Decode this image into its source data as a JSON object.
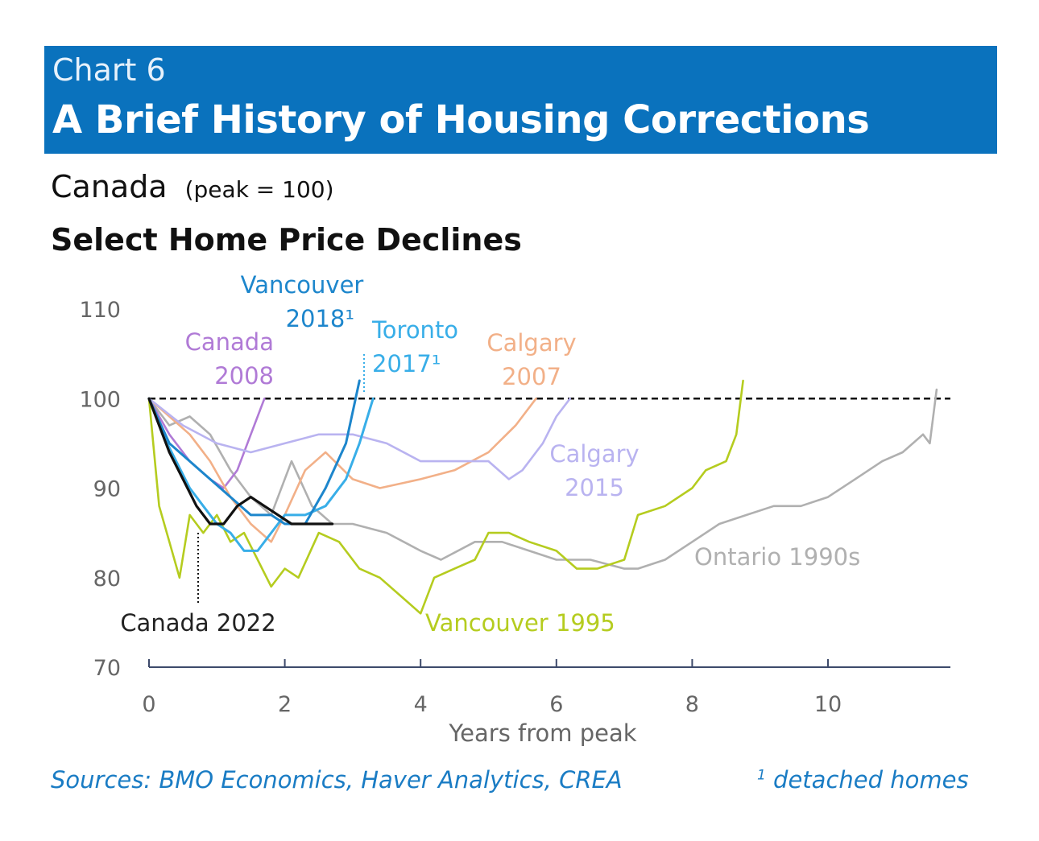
{
  "header": {
    "chart_number": "Chart 6",
    "title": "A Brief History of Housing Corrections"
  },
  "subtitle": {
    "region": "Canada",
    "note": "(peak = 100)",
    "heading": "Select Home Price Declines"
  },
  "footer": {
    "sources": "Sources: BMO Economics, Haver Analytics, CREA",
    "footnote_mark": "1",
    "footnote": "detached homes"
  },
  "chart_data": {
    "type": "line",
    "xlabel": "Years from peak",
    "ylabel": "",
    "xlim": [
      0,
      11.8
    ],
    "ylim": [
      70,
      110
    ],
    "xticks": [
      0,
      2,
      4,
      6,
      8,
      10
    ],
    "yticks": [
      70,
      80,
      90,
      100,
      110
    ],
    "reference_line": {
      "y": 100,
      "style": "dashed",
      "color": "#111111"
    },
    "series": [
      {
        "name": "Ontario 1990s",
        "color": "#b0b0b0",
        "label_lines": [
          "Ontario 1990s"
        ],
        "x": [
          0,
          0.3,
          0.6,
          0.9,
          1.2,
          1.5,
          1.8,
          2.1,
          2.4,
          2.7,
          3.0,
          3.5,
          4.0,
          4.3,
          4.8,
          5.2,
          5.6,
          6.0,
          6.5,
          7.0,
          7.2,
          7.6,
          8.0,
          8.4,
          8.8,
          9.2,
          9.6,
          10.0,
          10.4,
          10.8,
          11.1,
          11.4,
          11.5,
          11.6
        ],
        "y": [
          100,
          97,
          98,
          96,
          92,
          89,
          87,
          93,
          88,
          86,
          86,
          85,
          83,
          82,
          84,
          84,
          83,
          82,
          82,
          81,
          81,
          82,
          84,
          86,
          87,
          88,
          88,
          89,
          91,
          93,
          94,
          96,
          95,
          101
        ]
      },
      {
        "name": "Vancouver 1995",
        "color": "#b5cc1f",
        "label_lines": [
          "Vancouver 1995"
        ],
        "x": [
          0,
          0.15,
          0.3,
          0.45,
          0.6,
          0.8,
          1.0,
          1.2,
          1.4,
          1.6,
          1.8,
          2.0,
          2.2,
          2.5,
          2.8,
          3.1,
          3.4,
          3.7,
          4.0,
          4.2,
          4.5,
          4.8,
          5.0,
          5.3,
          5.6,
          6.0,
          6.3,
          6.6,
          7.0,
          7.2,
          7.6,
          8.0,
          8.2,
          8.5,
          8.65,
          8.75
        ],
        "y": [
          100,
          88,
          84,
          80,
          87,
          85,
          87,
          84,
          85,
          82,
          79,
          81,
          80,
          85,
          84,
          81,
          80,
          78,
          76,
          80,
          81,
          82,
          85,
          85,
          84,
          83,
          81,
          81,
          82,
          87,
          88,
          90,
          92,
          93,
          96,
          102
        ]
      },
      {
        "name": "Canada 2008",
        "color": "#b07ad6",
        "label_lines": [
          "Canada",
          "2008"
        ],
        "x": [
          0,
          0.3,
          0.6,
          0.9,
          1.1,
          1.3,
          1.5,
          1.7
        ],
        "y": [
          100,
          96,
          93,
          91,
          90,
          92,
          96,
          100
        ]
      },
      {
        "name": "Calgary 2007",
        "color": "#f2b088",
        "label_lines": [
          "Calgary",
          "2007"
        ],
        "x": [
          0,
          0.3,
          0.6,
          0.9,
          1.2,
          1.5,
          1.8,
          2.0,
          2.3,
          2.6,
          3.0,
          3.4,
          4.0,
          4.5,
          5.0,
          5.4,
          5.7
        ],
        "y": [
          100,
          98,
          96,
          93,
          89,
          86,
          84,
          87,
          92,
          94,
          91,
          90,
          91,
          92,
          94,
          97,
          100
        ]
      },
      {
        "name": "Calgary 2015",
        "color": "#b9b3f0",
        "label_lines": [
          "Calgary",
          "2015"
        ],
        "x": [
          0,
          0.5,
          1.0,
          1.5,
          2.0,
          2.5,
          3.0,
          3.5,
          4.0,
          4.5,
          5.0,
          5.3,
          5.5,
          5.8,
          6.0,
          6.2
        ],
        "y": [
          100,
          97,
          95,
          94,
          95,
          96,
          96,
          95,
          93,
          93,
          93,
          91,
          92,
          95,
          98,
          100
        ]
      },
      {
        "name": "Toronto 2017",
        "color": "#38aee8",
        "label_lines": [
          "Toronto",
          "2017¹"
        ],
        "x": [
          0,
          0.2,
          0.4,
          0.6,
          0.8,
          1.0,
          1.2,
          1.4,
          1.6,
          1.8,
          2.0,
          2.3,
          2.6,
          2.9,
          3.1,
          3.3
        ],
        "y": [
          100,
          96,
          93,
          90,
          88,
          86,
          85,
          83,
          83,
          85,
          87,
          87,
          88,
          91,
          95,
          100
        ]
      },
      {
        "name": "Vancouver 2018",
        "color": "#1d86cc",
        "label_lines": [
          "Vancouver",
          "2018¹"
        ],
        "x": [
          0,
          0.3,
          0.6,
          0.9,
          1.2,
          1.5,
          1.8,
          2.0,
          2.3,
          2.6,
          2.9,
          3.1
        ],
        "y": [
          100,
          95,
          93,
          91,
          89,
          87,
          87,
          86,
          86,
          90,
          95,
          102
        ]
      },
      {
        "name": "Canada 2022",
        "color": "#111111",
        "label_lines": [
          "Canada 2022"
        ],
        "x": [
          0,
          0.15,
          0.3,
          0.5,
          0.7,
          0.9,
          1.1,
          1.3,
          1.5,
          1.7,
          1.9,
          2.1,
          2.3,
          2.5,
          2.7
        ],
        "y": [
          100,
          97,
          94,
          91,
          88,
          86,
          86,
          88,
          89,
          88,
          87,
          86,
          86,
          86,
          86
        ]
      }
    ]
  }
}
